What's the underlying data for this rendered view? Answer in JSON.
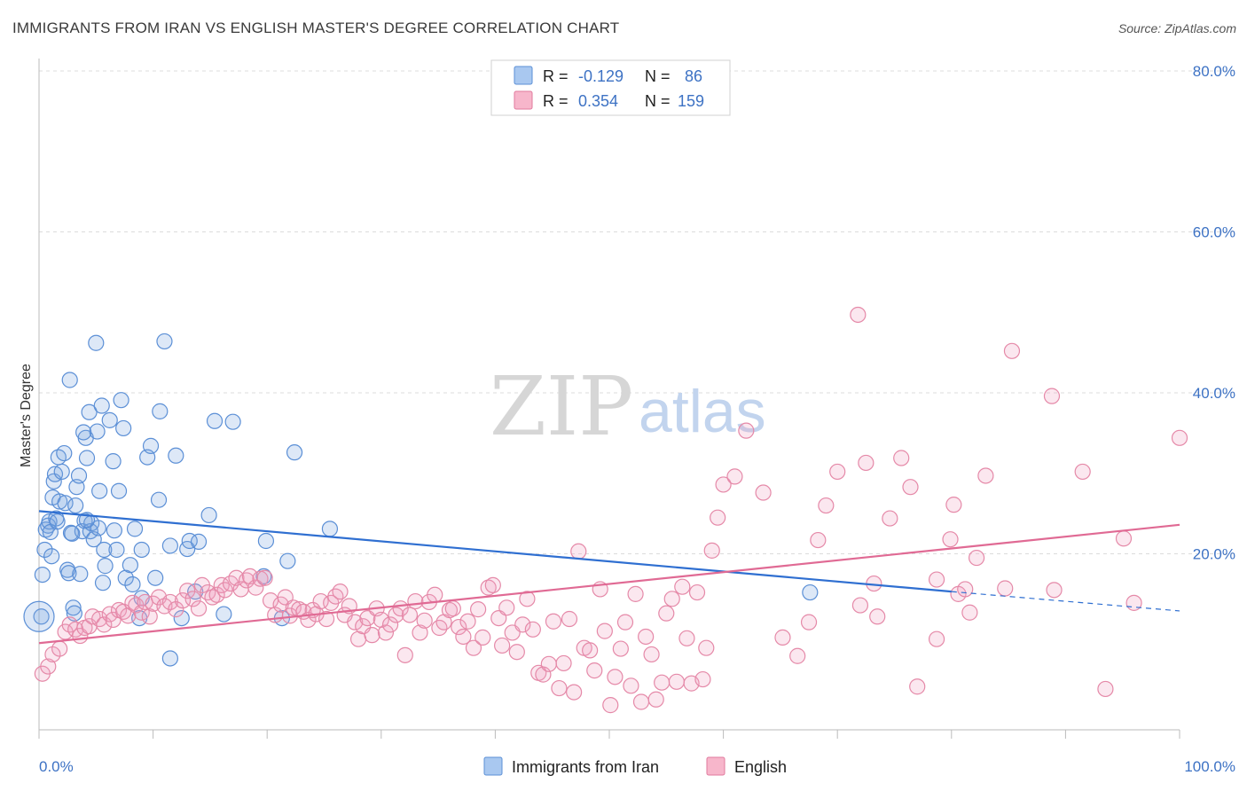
{
  "title": "IMMIGRANTS FROM IRAN VS ENGLISH MASTER'S DEGREE CORRELATION CHART",
  "source": "Source: ZipAtlas.com",
  "watermark": {
    "zip": "ZIP",
    "atlas": "atlas"
  },
  "legend": {
    "rows": [
      {
        "r_label": "R =",
        "r_value": "-0.129",
        "n_label": "N =",
        "n_value": "86",
        "color": "#a9c8f0",
        "stroke": "#5b8fd6"
      },
      {
        "r_label": "R =",
        "r_value": "0.354",
        "n_label": "N =",
        "n_value": "159",
        "color": "#f7b6cb",
        "stroke": "#e27a9e"
      }
    ]
  },
  "bottom_legend": {
    "series1": "Immigrants from Iran",
    "series2": "English"
  },
  "colors": {
    "blue": "#5b8fd6",
    "blue_fill": "rgba(120,165,225,0.25)",
    "blue_line": "#2f6fd1",
    "pink": "#e589a8",
    "pink_fill": "rgba(240,160,190,0.25)",
    "pink_line": "#e06a94"
  },
  "chart_data": {
    "type": "scatter",
    "title": "IMMIGRANTS FROM IRAN VS ENGLISH MASTER'S DEGREE CORRELATION CHART",
    "xlabel": "",
    "ylabel": "Master's Degree",
    "xlim": [
      0,
      100
    ],
    "ylim": [
      0,
      80
    ],
    "y_ticks": [
      20,
      40,
      60,
      80
    ],
    "y_tick_labels": [
      "20.0%",
      "40.0%",
      "60.0%",
      "80.0%"
    ],
    "x_tick_labels": [
      "0.0%",
      "100.0%"
    ],
    "grid": "horizontal dashed",
    "legend_position": "top-center",
    "series": [
      {
        "name": "Immigrants from Iran",
        "trend": {
          "x": [
            0,
            80
          ],
          "y": [
            25.3,
            15.3
          ],
          "extended_to": [
            100,
            12.9
          ]
        },
        "points": [
          [
            0.2,
            12.2
          ],
          [
            0.3,
            17.4
          ],
          [
            0.5,
            20.5
          ],
          [
            0.6,
            23.0
          ],
          [
            0.8,
            23.5
          ],
          [
            0.9,
            24.0
          ],
          [
            1.0,
            22.7
          ],
          [
            1.2,
            27.0
          ],
          [
            1.3,
            29.0
          ],
          [
            1.4,
            29.9
          ],
          [
            1.5,
            24.4
          ],
          [
            1.7,
            32.0
          ],
          [
            1.8,
            26.5
          ],
          [
            2.0,
            30.2
          ],
          [
            2.2,
            32.5
          ],
          [
            2.3,
            26.3
          ],
          [
            2.5,
            18.0
          ],
          [
            2.6,
            17.6
          ],
          [
            2.7,
            41.6
          ],
          [
            2.8,
            22.6
          ],
          [
            3.0,
            13.3
          ],
          [
            3.1,
            12.6
          ],
          [
            3.2,
            26.0
          ],
          [
            3.3,
            28.3
          ],
          [
            3.5,
            29.7
          ],
          [
            3.6,
            17.5
          ],
          [
            3.8,
            22.8
          ],
          [
            4.0,
            24.1
          ],
          [
            4.1,
            34.4
          ],
          [
            4.2,
            31.9
          ],
          [
            4.4,
            37.6
          ],
          [
            4.5,
            22.8
          ],
          [
            4.6,
            23.8
          ],
          [
            4.8,
            21.8
          ],
          [
            5.0,
            46.2
          ],
          [
            5.1,
            35.2
          ],
          [
            5.2,
            23.2
          ],
          [
            5.3,
            27.8
          ],
          [
            5.5,
            38.4
          ],
          [
            5.6,
            16.4
          ],
          [
            5.7,
            20.5
          ],
          [
            5.8,
            18.5
          ],
          [
            6.2,
            36.6
          ],
          [
            6.5,
            31.5
          ],
          [
            6.8,
            20.5
          ],
          [
            7.0,
            27.8
          ],
          [
            7.2,
            39.1
          ],
          [
            7.4,
            35.6
          ],
          [
            7.6,
            17.0
          ],
          [
            8.0,
            18.6
          ],
          [
            8.4,
            23.1
          ],
          [
            8.8,
            12.0
          ],
          [
            9.0,
            20.5
          ],
          [
            9.5,
            32.0
          ],
          [
            9.8,
            33.4
          ],
          [
            10.2,
            17.0
          ],
          [
            10.5,
            26.7
          ],
          [
            10.6,
            37.7
          ],
          [
            11.0,
            46.4
          ],
          [
            11.5,
            21.0
          ],
          [
            11.5,
            7.0
          ],
          [
            12.0,
            32.2
          ],
          [
            12.5,
            12.0
          ],
          [
            13.0,
            20.6
          ],
          [
            13.2,
            21.6
          ],
          [
            13.7,
            15.3
          ],
          [
            14.0,
            21.5
          ],
          [
            14.9,
            24.8
          ],
          [
            15.4,
            36.5
          ],
          [
            16.2,
            12.5
          ],
          [
            17.0,
            36.4
          ],
          [
            19.7,
            17.2
          ],
          [
            19.9,
            21.6
          ],
          [
            21.3,
            12.0
          ],
          [
            21.8,
            19.1
          ],
          [
            22.4,
            32.6
          ],
          [
            25.5,
            23.1
          ],
          [
            67.6,
            15.2
          ],
          [
            4.2,
            24.2
          ],
          [
            6.6,
            22.9
          ],
          [
            8.2,
            16.2
          ],
          [
            9.0,
            14.5
          ],
          [
            1.6,
            24.0
          ],
          [
            2.9,
            22.5
          ],
          [
            1.1,
            19.7
          ],
          [
            3.9,
            35.1
          ]
        ]
      },
      {
        "name": "English",
        "trend": {
          "x": [
            0,
            100
          ],
          "y": [
            8.9,
            23.6
          ]
        },
        "points": [
          [
            0.3,
            5.1
          ],
          [
            0.8,
            6.0
          ],
          [
            1.2,
            7.5
          ],
          [
            1.8,
            8.2
          ],
          [
            2.3,
            10.3
          ],
          [
            2.7,
            11.2
          ],
          [
            3.2,
            10.6
          ],
          [
            3.6,
            9.8
          ],
          [
            4.0,
            10.8
          ],
          [
            4.4,
            11.0
          ],
          [
            4.7,
            12.2
          ],
          [
            5.3,
            11.9
          ],
          [
            5.7,
            11.2
          ],
          [
            6.2,
            12.5
          ],
          [
            6.5,
            11.8
          ],
          [
            7.0,
            13.0
          ],
          [
            7.4,
            12.8
          ],
          [
            7.8,
            12.3
          ],
          [
            8.2,
            13.9
          ],
          [
            8.5,
            13.6
          ],
          [
            9.0,
            12.7
          ],
          [
            9.3,
            14.0
          ],
          [
            9.7,
            12.2
          ],
          [
            10.0,
            13.8
          ],
          [
            10.5,
            14.6
          ],
          [
            11.0,
            13.5
          ],
          [
            11.5,
            14.0
          ],
          [
            12.0,
            13.1
          ],
          [
            12.6,
            14.2
          ],
          [
            13.0,
            15.4
          ],
          [
            13.5,
            14.4
          ],
          [
            14.0,
            13.2
          ],
          [
            14.3,
            16.1
          ],
          [
            14.8,
            15.2
          ],
          [
            15.2,
            14.6
          ],
          [
            15.6,
            14.9
          ],
          [
            16.0,
            16.1
          ],
          [
            16.3,
            15.5
          ],
          [
            16.8,
            16.3
          ],
          [
            17.3,
            17.0
          ],
          [
            17.7,
            15.6
          ],
          [
            18.2,
            16.7
          ],
          [
            18.5,
            17.2
          ],
          [
            19.0,
            15.8
          ],
          [
            19.4,
            16.9
          ],
          [
            19.8,
            17.0
          ],
          [
            20.3,
            14.2
          ],
          [
            20.7,
            12.4
          ],
          [
            21.2,
            13.7
          ],
          [
            21.6,
            14.6
          ],
          [
            22.0,
            12.3
          ],
          [
            22.3,
            13.3
          ],
          [
            22.8,
            13.1
          ],
          [
            23.2,
            12.8
          ],
          [
            23.6,
            11.8
          ],
          [
            24.0,
            13.0
          ],
          [
            24.3,
            12.5
          ],
          [
            24.7,
            14.1
          ],
          [
            25.2,
            11.9
          ],
          [
            25.6,
            13.9
          ],
          [
            26.0,
            14.7
          ],
          [
            26.4,
            15.3
          ],
          [
            26.8,
            12.4
          ],
          [
            27.2,
            13.5
          ],
          [
            27.7,
            11.5
          ],
          [
            28.0,
            9.4
          ],
          [
            28.4,
            11.0
          ],
          [
            28.8,
            12.0
          ],
          [
            29.2,
            9.9
          ],
          [
            29.6,
            13.2
          ],
          [
            30.0,
            11.8
          ],
          [
            30.4,
            10.2
          ],
          [
            30.8,
            11.2
          ],
          [
            31.3,
            12.4
          ],
          [
            31.7,
            13.2
          ],
          [
            32.1,
            7.4
          ],
          [
            32.5,
            12.4
          ],
          [
            33.0,
            14.1
          ],
          [
            33.4,
            10.2
          ],
          [
            33.8,
            11.7
          ],
          [
            34.2,
            14.0
          ],
          [
            34.7,
            14.9
          ],
          [
            35.1,
            10.8
          ],
          [
            35.5,
            11.5
          ],
          [
            36.0,
            13.0
          ],
          [
            36.3,
            13.2
          ],
          [
            36.8,
            10.9
          ],
          [
            37.2,
            9.7
          ],
          [
            37.6,
            11.6
          ],
          [
            38.1,
            8.3
          ],
          [
            38.5,
            13.1
          ],
          [
            38.9,
            9.6
          ],
          [
            39.4,
            15.8
          ],
          [
            39.8,
            16.1
          ],
          [
            40.3,
            12.0
          ],
          [
            40.6,
            8.6
          ],
          [
            41.0,
            13.3
          ],
          [
            41.5,
            10.2
          ],
          [
            41.9,
            7.8
          ],
          [
            42.4,
            11.2
          ],
          [
            42.8,
            14.4
          ],
          [
            43.3,
            10.6
          ],
          [
            43.8,
            5.2
          ],
          [
            44.2,
            5.0
          ],
          [
            44.7,
            6.3
          ],
          [
            45.1,
            11.6
          ],
          [
            45.6,
            3.3
          ],
          [
            46.0,
            6.4
          ],
          [
            46.5,
            11.9
          ],
          [
            46.9,
            2.8
          ],
          [
            47.3,
            20.3
          ],
          [
            47.8,
            8.3
          ],
          [
            48.3,
            8.0
          ],
          [
            48.7,
            5.5
          ],
          [
            49.2,
            15.6
          ],
          [
            49.6,
            10.4
          ],
          [
            50.1,
            1.2
          ],
          [
            50.5,
            4.7
          ],
          [
            51.0,
            8.2
          ],
          [
            51.4,
            11.5
          ],
          [
            51.9,
            3.6
          ],
          [
            52.3,
            15.0
          ],
          [
            52.8,
            1.6
          ],
          [
            53.2,
            9.7
          ],
          [
            53.7,
            7.5
          ],
          [
            54.1,
            1.9
          ],
          [
            54.6,
            4.0
          ],
          [
            55.0,
            12.6
          ],
          [
            55.5,
            14.4
          ],
          [
            55.9,
            4.1
          ],
          [
            56.4,
            15.9
          ],
          [
            56.8,
            9.5
          ],
          [
            57.2,
            3.9
          ],
          [
            57.7,
            15.2
          ],
          [
            58.2,
            4.4
          ],
          [
            58.5,
            8.3
          ],
          [
            59.0,
            20.4
          ],
          [
            59.5,
            24.5
          ],
          [
            60.0,
            28.6
          ],
          [
            61.0,
            29.6
          ],
          [
            62.0,
            35.3
          ],
          [
            63.5,
            27.6
          ],
          [
            65.2,
            9.6
          ],
          [
            66.5,
            7.3
          ],
          [
            67.5,
            11.5
          ],
          [
            68.3,
            21.7
          ],
          [
            69.0,
            26.0
          ],
          [
            70.0,
            30.2
          ],
          [
            71.8,
            49.7
          ],
          [
            72.0,
            13.6
          ],
          [
            72.5,
            31.3
          ],
          [
            73.2,
            16.3
          ],
          [
            73.5,
            12.2
          ],
          [
            74.6,
            24.4
          ],
          [
            75.6,
            31.9
          ],
          [
            76.4,
            28.3
          ],
          [
            77.0,
            3.5
          ],
          [
            78.7,
            9.4
          ],
          [
            78.7,
            16.8
          ],
          [
            79.9,
            21.8
          ],
          [
            80.2,
            26.1
          ],
          [
            80.6,
            15.0
          ],
          [
            81.2,
            15.6
          ],
          [
            81.6,
            12.7
          ],
          [
            82.2,
            19.5
          ],
          [
            83.0,
            29.7
          ],
          [
            84.7,
            15.7
          ],
          [
            89.0,
            15.5
          ],
          [
            91.5,
            30.2
          ],
          [
            95.1,
            21.9
          ],
          [
            100.0,
            34.4
          ],
          [
            96.0,
            13.9
          ],
          [
            85.3,
            45.2
          ],
          [
            93.5,
            3.2
          ],
          [
            88.8,
            39.6
          ]
        ]
      }
    ]
  }
}
